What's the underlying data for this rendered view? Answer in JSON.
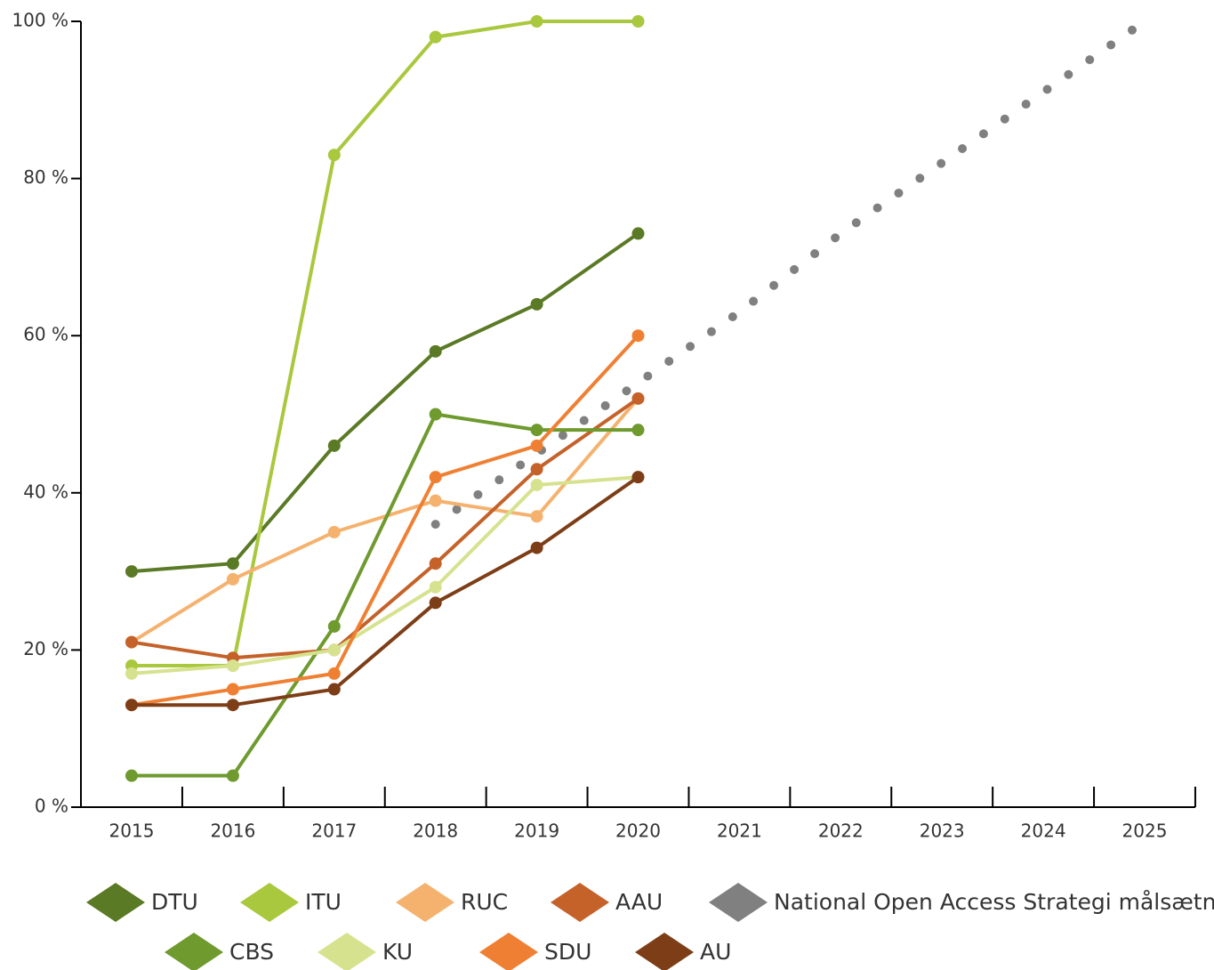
{
  "chart_data": {
    "type": "line",
    "categories": [
      "2015",
      "2016",
      "2017",
      "2018",
      "2019",
      "2020",
      "2021",
      "2022",
      "2023",
      "2024",
      "2025"
    ],
    "ylim": [
      0,
      100
    ],
    "yticks": [
      {
        "value": 0,
        "label": "0 %"
      },
      {
        "value": 20,
        "label": "20 %"
      },
      {
        "value": 40,
        "label": "40 %"
      },
      {
        "value": 60,
        "label": "60 %"
      },
      {
        "value": 80,
        "label": "80 %"
      },
      {
        "value": 100,
        "label": "100 %"
      }
    ],
    "grid": false,
    "markers": true,
    "legend": "bottom",
    "series": [
      {
        "name": "DTU",
        "color": "#5a7a25",
        "values": [
          30,
          31,
          46,
          58,
          64,
          73,
          null,
          null,
          null,
          null,
          null
        ]
      },
      {
        "name": "ITU",
        "color": "#a9c83e",
        "values": [
          18,
          18,
          83,
          98,
          100,
          100,
          null,
          null,
          null,
          null,
          null
        ]
      },
      {
        "name": "RUC",
        "color": "#f5b26f",
        "values": [
          21,
          29,
          35,
          39,
          37,
          52,
          null,
          null,
          null,
          null,
          null
        ]
      },
      {
        "name": "AAU",
        "color": "#c4622a",
        "values": [
          21,
          19,
          20,
          31,
          43,
          52,
          null,
          null,
          null,
          null,
          null
        ]
      },
      {
        "name": "National Open Access Strategi målsætning",
        "color": "#808080",
        "style": "dotted",
        "values": [
          null,
          null,
          null,
          36,
          45,
          54,
          63,
          73,
          82,
          91,
          100
        ]
      },
      {
        "name": "CBS",
        "color": "#6e9a2e",
        "values": [
          4,
          4,
          23,
          50,
          48,
          48,
          null,
          null,
          null,
          null,
          null
        ]
      },
      {
        "name": "KU",
        "color": "#d7e28f",
        "values": [
          17,
          18,
          20,
          28,
          41,
          42,
          null,
          null,
          null,
          null,
          null
        ]
      },
      {
        "name": "SDU",
        "color": "#ef8033",
        "values": [
          13,
          15,
          17,
          42,
          46,
          60,
          null,
          null,
          null,
          null,
          null
        ]
      },
      {
        "name": "AU",
        "color": "#7d3e17",
        "values": [
          13,
          13,
          15,
          26,
          33,
          42,
          null,
          null,
          null,
          null,
          null
        ]
      }
    ]
  }
}
